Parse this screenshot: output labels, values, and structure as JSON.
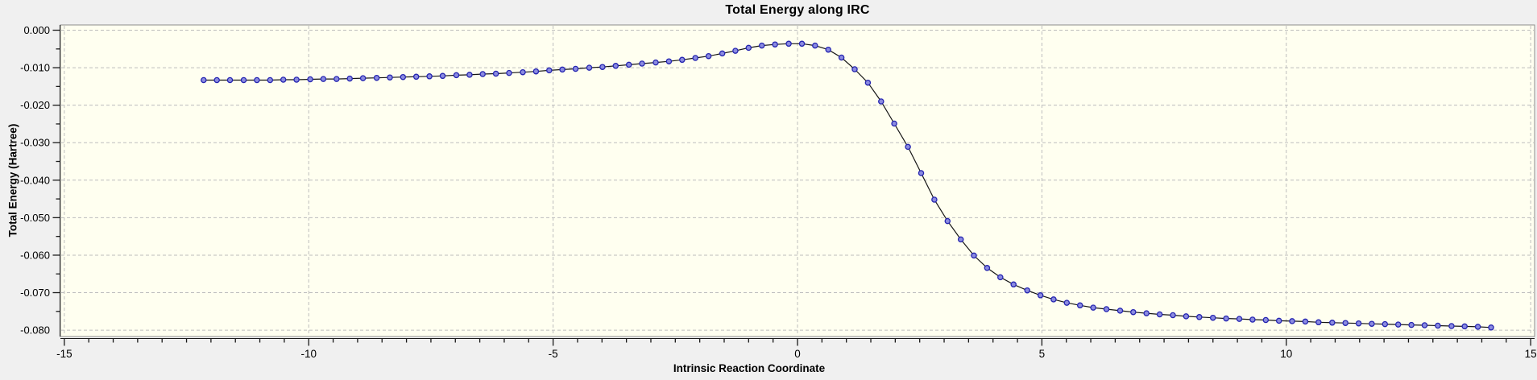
{
  "window": {
    "background": "#f0f0f0"
  },
  "style": {
    "plot_bg": "#fffff0",
    "outer_bg": "#f0f0f0",
    "grid_color": "#bdbdbd",
    "border_color": "#8c8c8c",
    "axis_color": "#1a1a1a",
    "line_color": "#151515",
    "marker_fill": "#8b8be0",
    "marker_stroke": "#2424b0",
    "text_color": "#000000"
  },
  "chart_data": {
    "type": "line",
    "title": "Total Energy along IRC",
    "xlabel": "Intrinsic Reaction Coordinate",
    "ylabel": "Total Energy (Hartree)",
    "xlim": [
      -15.08,
      15.08
    ],
    "ylim": [
      -0.0817,
      0.0014
    ],
    "x_major_ticks": [
      -15,
      -10,
      -5,
      0,
      5,
      10,
      15
    ],
    "x_tick_labels": [
      "-15",
      "-10",
      "-5",
      "0",
      "5",
      "10",
      "15"
    ],
    "x_minor_step": 0.5,
    "y_major_ticks": [
      0,
      -0.01,
      -0.02,
      -0.03,
      -0.04,
      -0.05,
      -0.06,
      -0.07,
      -0.08
    ],
    "y_tick_labels": [
      "0.000",
      "-0.010",
      "-0.020",
      "-0.030",
      "-0.040",
      "-0.050",
      "-0.060",
      "-0.070",
      "-0.080"
    ],
    "y_minor_step": 0.005,
    "grid": "major-dashed",
    "legend_position": "none",
    "series": [
      {
        "name": "Total Energy",
        "x": [
          -12.15,
          -11.88,
          -11.61,
          -11.33,
          -11.06,
          -10.79,
          -10.52,
          -10.25,
          -9.97,
          -9.7,
          -9.43,
          -9.16,
          -8.89,
          -8.61,
          -8.34,
          -8.07,
          -7.8,
          -7.53,
          -7.26,
          -6.98,
          -6.71,
          -6.44,
          -6.17,
          -5.9,
          -5.62,
          -5.35,
          -5.08,
          -4.81,
          -4.54,
          -4.26,
          -3.99,
          -3.72,
          -3.45,
          -3.18,
          -2.9,
          -2.63,
          -2.36,
          -2.09,
          -1.82,
          -1.54,
          -1.27,
          -1.0,
          -0.73,
          -0.46,
          -0.18,
          0.09,
          0.36,
          0.63,
          0.9,
          1.17,
          1.44,
          1.71,
          1.98,
          2.26,
          2.53,
          2.8,
          3.07,
          3.34,
          3.61,
          3.88,
          4.15,
          4.42,
          4.7,
          4.97,
          5.24,
          5.51,
          5.78,
          6.05,
          6.32,
          6.6,
          6.87,
          7.14,
          7.41,
          7.68,
          7.95,
          8.22,
          8.5,
          8.77,
          9.04,
          9.31,
          9.58,
          9.85,
          10.12,
          10.39,
          10.66,
          10.94,
          11.21,
          11.48,
          11.75,
          12.02,
          12.29,
          12.56,
          12.83,
          13.1,
          13.38,
          13.65,
          13.92,
          14.19
        ],
        "y": [
          -0.0133,
          -0.0133,
          -0.0133,
          -0.0133,
          -0.0133,
          -0.0133,
          -0.0132,
          -0.0132,
          -0.0131,
          -0.013,
          -0.013,
          -0.0129,
          -0.0128,
          -0.0127,
          -0.0126,
          -0.0125,
          -0.0124,
          -0.0123,
          -0.0122,
          -0.012,
          -0.0119,
          -0.0117,
          -0.0116,
          -0.0114,
          -0.0112,
          -0.011,
          -0.0107,
          -0.0105,
          -0.0103,
          -0.01,
          -0.0098,
          -0.0095,
          -0.0092,
          -0.0089,
          -0.0086,
          -0.0083,
          -0.0079,
          -0.0074,
          -0.0069,
          -0.0062,
          -0.0055,
          -0.0047,
          -0.0041,
          -0.0038,
          -0.0036,
          -0.0036,
          -0.0041,
          -0.0052,
          -0.0073,
          -0.0104,
          -0.014,
          -0.019,
          -0.0249,
          -0.0311,
          -0.0381,
          -0.0452,
          -0.0509,
          -0.0558,
          -0.0601,
          -0.0634,
          -0.0659,
          -0.0678,
          -0.0694,
          -0.0707,
          -0.0718,
          -0.0727,
          -0.0734,
          -0.074,
          -0.0744,
          -0.0748,
          -0.0752,
          -0.0755,
          -0.0758,
          -0.076,
          -0.0763,
          -0.0765,
          -0.0767,
          -0.0769,
          -0.077,
          -0.0772,
          -0.0773,
          -0.0775,
          -0.0776,
          -0.0777,
          -0.0779,
          -0.078,
          -0.0781,
          -0.0782,
          -0.0783,
          -0.0784,
          -0.0785,
          -0.0786,
          -0.0787,
          -0.0788,
          -0.0789,
          -0.079,
          -0.0791,
          -0.0793
        ]
      }
    ]
  }
}
